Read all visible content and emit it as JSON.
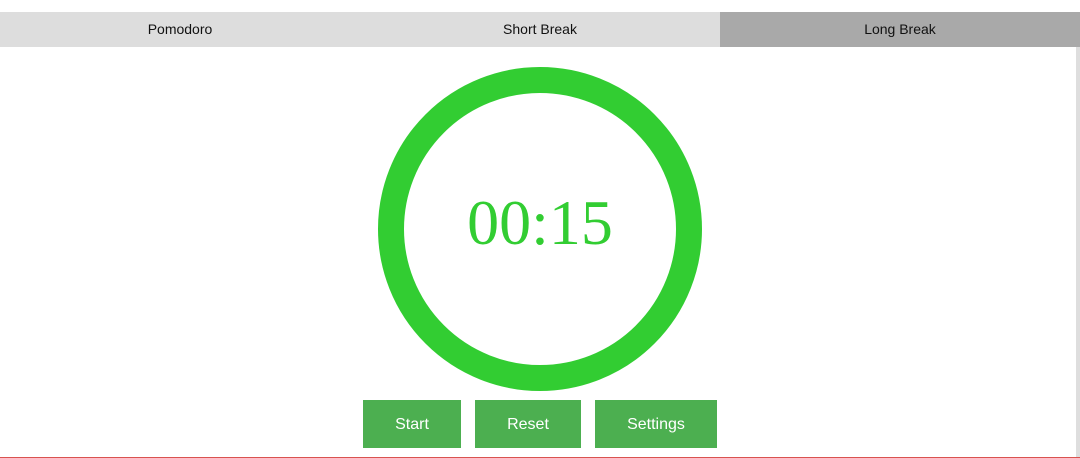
{
  "tabs": [
    {
      "label": "Pomodoro",
      "active": false
    },
    {
      "label": "Short Break",
      "active": false
    },
    {
      "label": "Long Break",
      "active": true
    }
  ],
  "timer": {
    "display": "00:15",
    "progress": 1.0
  },
  "controls": {
    "start_label": "Start",
    "reset_label": "Reset",
    "settings_label": "Settings"
  },
  "colors": {
    "ring": "#32cd32",
    "button": "#4caf50",
    "tab_bg": "#dddddd",
    "tab_active_bg": "#a9a9a9"
  }
}
